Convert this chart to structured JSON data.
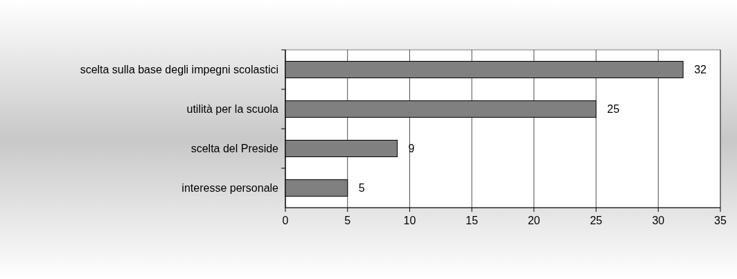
{
  "chart_data": {
    "type": "bar",
    "orientation": "horizontal",
    "categories": [
      "scelta sulla base degli impegni scolastici",
      "utilità per la scuola",
      "scelta del Preside",
      "interesse personale"
    ],
    "values": [
      32,
      25,
      9,
      5
    ],
    "color": "#808080",
    "xlim": [
      0,
      35
    ],
    "xticks": [
      0,
      5,
      10,
      15,
      20,
      25,
      30,
      35
    ],
    "grid": "x",
    "data_labels": true
  }
}
